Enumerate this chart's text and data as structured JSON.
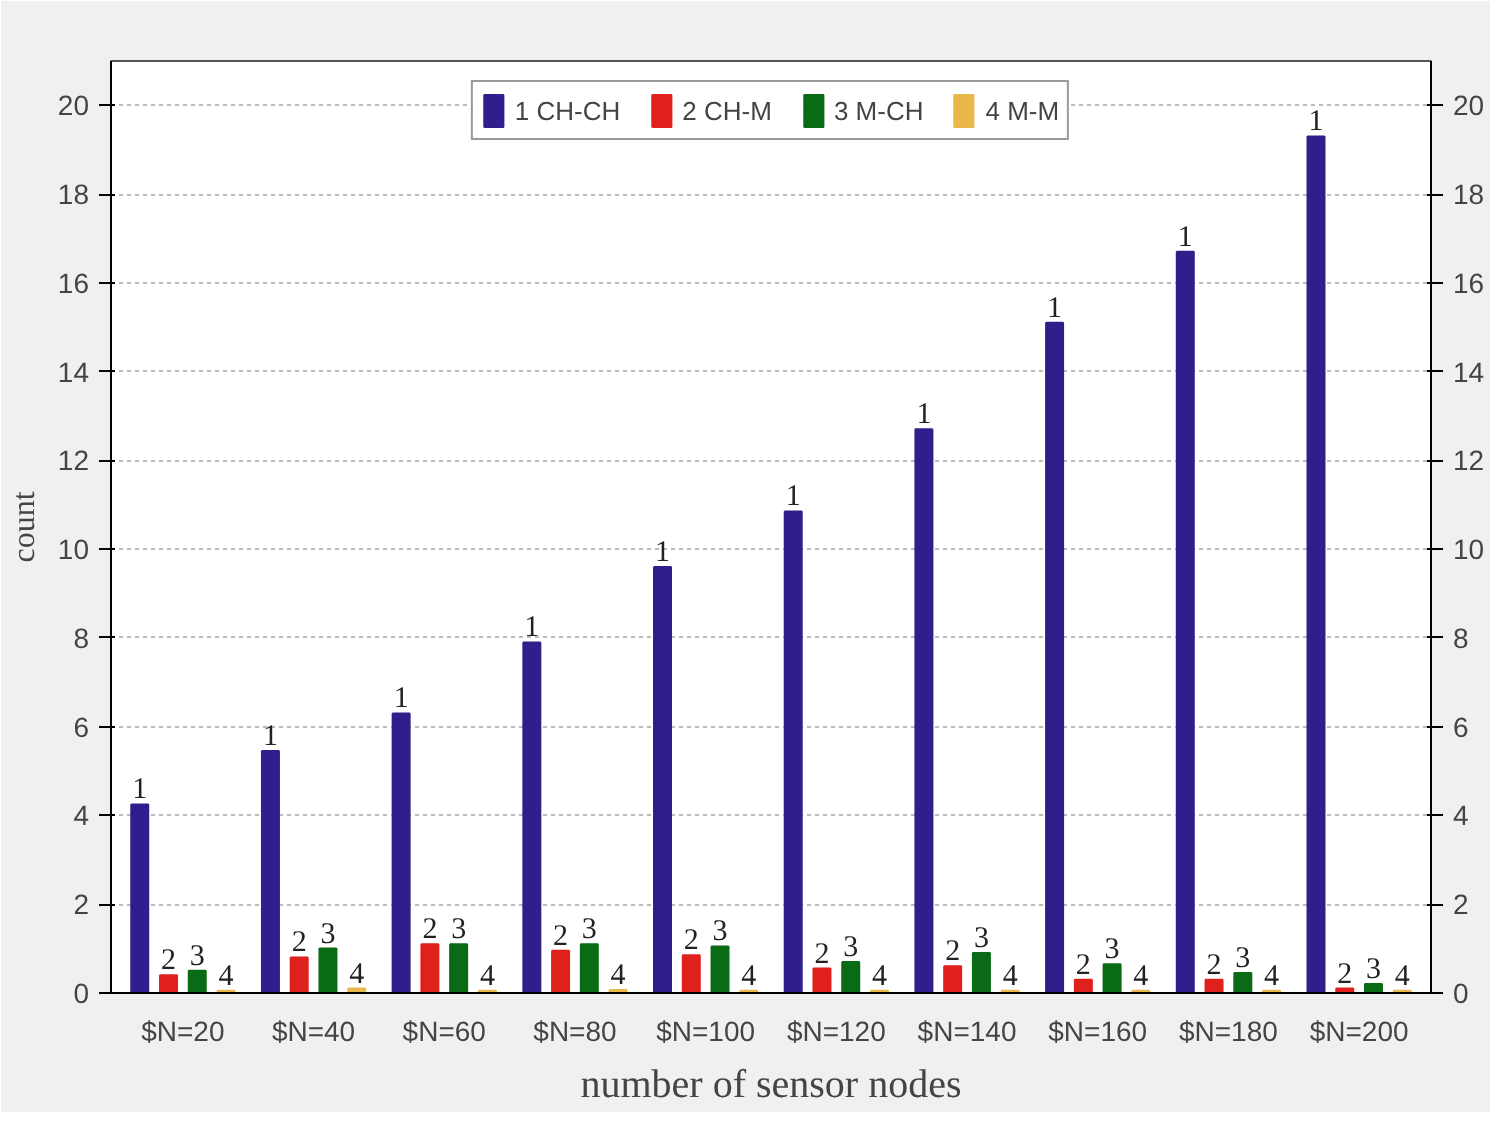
{
  "chart_data": {
    "type": "bar",
    "xlabel": "number of sensor nodes",
    "ylabel": "count",
    "categories": [
      "$N=20",
      "$N=40",
      "$N=60",
      "$N=80",
      "$N=100",
      "$N=120",
      "$N=140",
      "$N=160",
      "$N=180",
      "$N=200"
    ],
    "series": [
      {
        "name": "1 CH-CH",
        "color": "#2e1f8c",
        "values": [
          4.25,
          5.45,
          6.3,
          7.9,
          9.6,
          10.85,
          12.7,
          15.1,
          16.7,
          19.3
        ]
      },
      {
        "name": "2 CH-M",
        "color": "#e0201c",
        "values": [
          0.4,
          0.8,
          1.1,
          0.95,
          0.85,
          0.55,
          0.6,
          0.3,
          0.3,
          0.1
        ]
      },
      {
        "name": "3 M-CH",
        "color": "#0a6b16",
        "values": [
          0.5,
          1.0,
          1.1,
          1.1,
          1.05,
          0.7,
          0.9,
          0.65,
          0.45,
          0.2
        ]
      },
      {
        "name": "4 M-M",
        "color": "#e8b84a",
        "values": [
          0.05,
          0.1,
          0.05,
          0.07,
          0.05,
          0.05,
          0.05,
          0.05,
          0.05,
          0.05
        ]
      }
    ],
    "annotations": [
      "1",
      "1",
      "1",
      "1",
      "1",
      "1",
      "1",
      "1",
      "1",
      "1",
      "2",
      "2",
      "2",
      "2",
      "2",
      "2",
      "2",
      "2",
      "2",
      "2",
      "3",
      "3",
      "3",
      "3",
      "3",
      "3",
      "3",
      "3",
      "3",
      "3",
      "4",
      "4",
      "4",
      "4",
      "4",
      "4",
      "4",
      "4",
      "4",
      "4"
    ],
    "ylim": [
      0,
      21
    ],
    "yticks": [
      0,
      2,
      4,
      6,
      8,
      10,
      12,
      14,
      16,
      18,
      20
    ],
    "y2lim": [
      0,
      21
    ],
    "y2ticks": [
      0,
      2,
      4,
      6,
      8,
      10,
      12,
      14,
      16,
      18,
      20
    ],
    "grid": "y",
    "legend": "top"
  }
}
